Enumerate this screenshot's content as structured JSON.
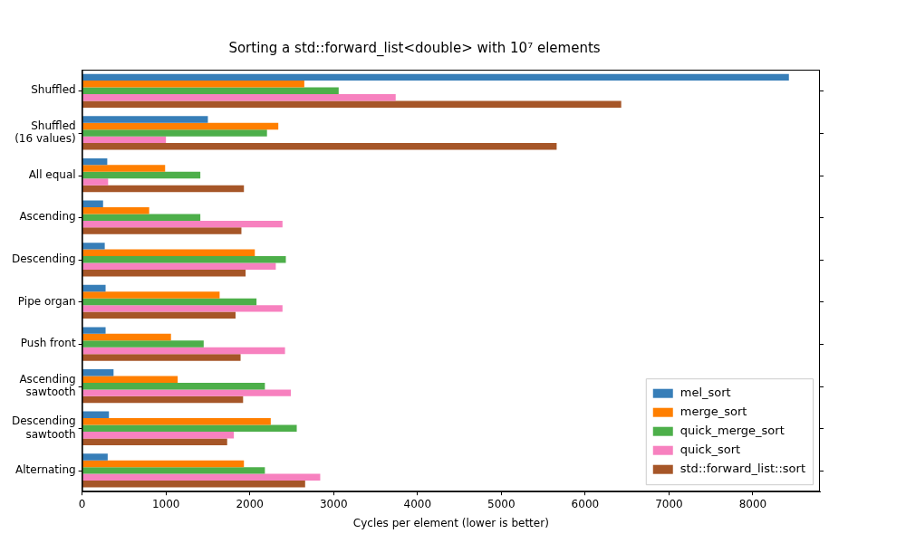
{
  "chart_data": {
    "type": "bar",
    "orientation": "horizontal",
    "title": "Sorting a std::forward_list<double> with 10⁷ elements",
    "xlabel": "Cycles per element (lower is better)",
    "categories": [
      "Shuffled",
      "Shuffled\n(16 values)",
      "All equal",
      "Ascending",
      "Descending",
      "Pipe organ",
      "Push front",
      "Ascending\nsawtooth",
      "Descending\nsawtooth",
      "Alternating"
    ],
    "series": [
      {
        "name": "mel_sort",
        "color": "#377eb8",
        "values": [
          8430,
          1500,
          300,
          250,
          270,
          280,
          280,
          375,
          320,
          305
        ]
      },
      {
        "name": "merge_sort",
        "color": "#ff7f00",
        "values": [
          2650,
          2340,
          990,
          800,
          2060,
          1640,
          1060,
          1140,
          2250,
          1930
        ]
      },
      {
        "name": "quick_merge_sort",
        "color": "#4daf4a",
        "values": [
          3060,
          2205,
          1410,
          1410,
          2430,
          2080,
          1450,
          2180,
          2560,
          2180
        ]
      },
      {
        "name": "quick_sort",
        "color": "#f781bf",
        "values": [
          3740,
          1000,
          310,
          2390,
          2310,
          2390,
          2420,
          2490,
          1810,
          2840
        ]
      },
      {
        "name": "std::forward_list::sort",
        "color": "#a65628",
        "values": [
          6430,
          5660,
          1930,
          1900,
          1950,
          1830,
          1890,
          1920,
          1730,
          2660
        ]
      }
    ],
    "xlim": [
      0,
      8800
    ],
    "xticks": [
      0,
      1000,
      2000,
      3000,
      4000,
      5000,
      6000,
      7000,
      8000
    ],
    "grid": false,
    "legend": "lower right"
  }
}
